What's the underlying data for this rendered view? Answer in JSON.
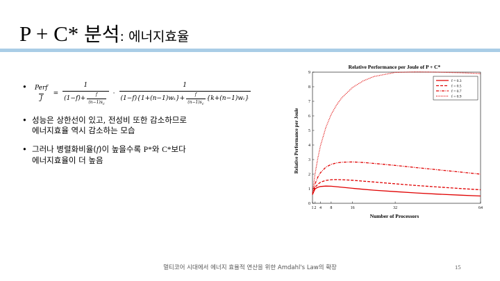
{
  "slide": {
    "title_main": "P + C* ",
    "title_main_kor": "분석",
    "title_sub": ": 에너지효율",
    "page_number": "15",
    "footer": "멀티코어 시대에서 에너지 효율적 연산을 위한 Amdahl's Law의 확장"
  },
  "bullets": {
    "formula": {
      "lhs_num": "Perf",
      "lhs_den": "J",
      "eq": "=",
      "f1_num": "1",
      "f1_den_a": "(1−f)+",
      "f1_den_b_num": "f",
      "f1_den_b_den": "(n−1)s",
      "dot": "·",
      "f2_num": "1",
      "f2_den_a": "(1−f){1+(n−1)w",
      "f2_den_a2": "k",
      "f2_den_a3": "}+",
      "f2_den_b_num": "f",
      "f2_den_b_den": "(n−1)s",
      "f2_den_c": "{k+(n−1)w",
      "f2_den_c2": "}"
    },
    "b2_line1": "성능은 상한선이 있고, 전성비 또한 감소하므로",
    "b2_line2": "에너지효율 역시 감소하는 모습",
    "b3_part1": "그러나 병렬화비율(",
    "b3_f": "f",
    "b3_part2": ")이 높을수록 ",
    "b3_p": "P*",
    "b3_part3": "와 ",
    "b3_c": "C*",
    "b3_part4": "보다",
    "b3_line2": "에너지효율이 더 높음"
  },
  "chart_data": {
    "type": "line",
    "title": "Relative Performance per Joule of P + C*",
    "xlabel": "Number of Processors",
    "ylabel": "Relative Performance per Joule",
    "xlim": [
      1,
      64
    ],
    "ylim": [
      0,
      9
    ],
    "xticks": [
      1,
      2,
      4,
      8,
      16,
      32,
      64
    ],
    "yticks": [
      0,
      1,
      2,
      3,
      4,
      5,
      6,
      7,
      8,
      9
    ],
    "legend_position": "top-right",
    "color": "#e00000",
    "x": [
      1,
      2,
      3,
      4,
      6,
      8,
      10,
      12,
      16,
      20,
      24,
      32,
      40,
      48,
      56,
      64
    ],
    "series": [
      {
        "name": "f = 0.3",
        "style": "solid",
        "values": [
          0.6,
          1.0,
          1.1,
          1.15,
          1.18,
          1.17,
          1.14,
          1.1,
          1.03,
          0.96,
          0.9,
          0.8,
          0.71,
          0.63,
          0.56,
          0.5
        ]
      },
      {
        "name": "f = 0.5",
        "style": "dashed",
        "values": [
          0.6,
          1.1,
          1.3,
          1.45,
          1.57,
          1.62,
          1.63,
          1.62,
          1.58,
          1.52,
          1.46,
          1.34,
          1.22,
          1.12,
          1.02,
          0.93
        ]
      },
      {
        "name": "f = 0.7",
        "style": "dashdot",
        "values": [
          0.6,
          1.35,
          1.8,
          2.1,
          2.48,
          2.67,
          2.77,
          2.82,
          2.84,
          2.8,
          2.74,
          2.6,
          2.45,
          2.3,
          2.15,
          2.0
        ]
      },
      {
        "name": "f = 0.9",
        "style": "dotted",
        "values": [
          0.7,
          2.05,
          3.1,
          3.95,
          5.2,
          6.1,
          6.75,
          7.25,
          7.95,
          8.4,
          8.7,
          8.98,
          9.02,
          9.0,
          8.96,
          8.9
        ]
      }
    ]
  }
}
